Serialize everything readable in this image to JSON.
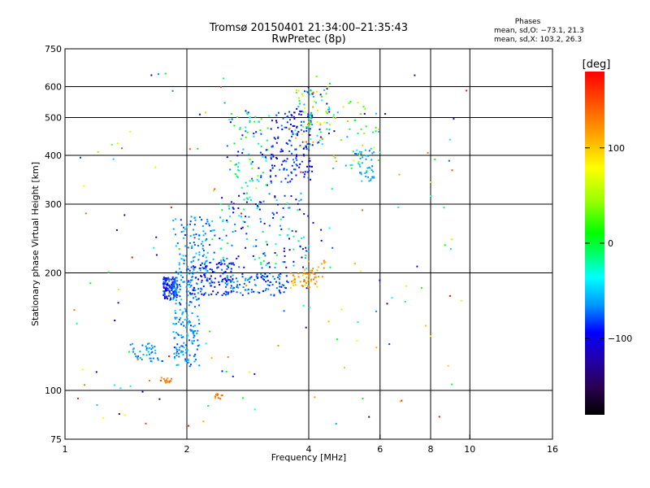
{
  "header": {
    "title_line1": "Tromsø 20150401 21:34:00–21:35:43",
    "title_line2": "RwPretec (8p)",
    "stats_heading": "Phases",
    "stats_o": "mean, sd,O: −73.1, 21.3",
    "stats_x": "mean, sd,X: 103.2, 26.3"
  },
  "colorbar": {
    "unit_label": "[deg]",
    "ticks": [
      {
        "value": 100,
        "label": "100"
      },
      {
        "value": 0,
        "label": "0"
      },
      {
        "value": -100,
        "label": "−100"
      }
    ],
    "range": [
      -180,
      180
    ],
    "colormap": [
      "#000000",
      "#2a0050",
      "#2000b4",
      "#0000ff",
      "#0096ff",
      "#00ffff",
      "#00ff66",
      "#00ff00",
      "#96ff00",
      "#ffff00",
      "#ffa000",
      "#ff5000",
      "#ff0000"
    ]
  },
  "chart_data": {
    "type": "scatter",
    "xlabel": "Frequency [MHz]",
    "ylabel": "Stationary phase Virtual Height [km]",
    "x_scale": "log",
    "y_scale": "log",
    "xlim": [
      1,
      16
    ],
    "ylim": [
      75,
      750
    ],
    "x_ticks": [
      {
        "v": 1,
        "l": "1"
      },
      {
        "v": 2,
        "l": "2"
      },
      {
        "v": 4,
        "l": "4"
      },
      {
        "v": 6,
        "l": "6"
      },
      {
        "v": 8,
        "l": "8"
      },
      {
        "v": 10,
        "l": "10"
      },
      {
        "v": 16,
        "l": "16"
      }
    ],
    "y_ticks": [
      {
        "v": 75,
        "l": "75"
      },
      {
        "v": 100,
        "l": "100"
      },
      {
        "v": 200,
        "l": "200"
      },
      {
        "v": 300,
        "l": "300"
      },
      {
        "v": 400,
        "l": "400"
      },
      {
        "v": 500,
        "l": "500"
      },
      {
        "v": 600,
        "l": "600"
      },
      {
        "v": 750,
        "l": "750"
      }
    ],
    "grid": true,
    "color_variable": "phase [deg]",
    "clusters": [
      {
        "f": [
          1.75,
          1.9
        ],
        "h": [
          170,
          195
        ],
        "phase": [
          -110,
          -60
        ],
        "n": 120
      },
      {
        "f": [
          1.85,
          2.15
        ],
        "h": [
          115,
          190
        ],
        "phase": [
          -80,
          -40
        ],
        "n": 180
      },
      {
        "f": [
          1.45,
          1.75
        ],
        "h": [
          118,
          132
        ],
        "phase": [
          -75,
          -45
        ],
        "n": 40
      },
      {
        "f": [
          1.85,
          2.35
        ],
        "h": [
          190,
          280
        ],
        "phase": [
          -80,
          -40
        ],
        "n": 120
      },
      {
        "f": [
          2.0,
          2.6
        ],
        "h": [
          175,
          215
        ],
        "phase": [
          -110,
          -60
        ],
        "n": 120
      },
      {
        "f": [
          2.5,
          3.6
        ],
        "h": [
          175,
          200
        ],
        "phase": [
          -90,
          -50
        ],
        "n": 110
      },
      {
        "f": [
          3.6,
          4.2
        ],
        "h": [
          182,
          200
        ],
        "phase": [
          100,
          140
        ],
        "n": 45
      },
      {
        "f": [
          3.9,
          4.4
        ],
        "h": [
          195,
          215
        ],
        "phase": [
          110,
          140
        ],
        "n": 20
      },
      {
        "f": [
          2.4,
          4.0
        ],
        "h": [
          205,
          320
        ],
        "phase": [
          -130,
          10
        ],
        "n": 160
      },
      {
        "f": [
          3.2,
          4.1
        ],
        "h": [
          340,
          520
        ],
        "phase": [
          -120,
          -60
        ],
        "n": 160
      },
      {
        "f": [
          2.5,
          3.2
        ],
        "h": [
          330,
          520
        ],
        "phase": [
          -100,
          60
        ],
        "n": 80
      },
      {
        "f": [
          3.7,
          4.5
        ],
        "h": [
          420,
          600
        ],
        "phase": [
          -120,
          140
        ],
        "n": 90
      },
      {
        "f": [
          4.5,
          6.0
        ],
        "h": [
          360,
          560
        ],
        "phase": [
          -60,
          120
        ],
        "n": 50
      },
      {
        "f": [
          5.2,
          5.8
        ],
        "h": [
          340,
          420
        ],
        "phase": [
          -70,
          -40
        ],
        "n": 40
      },
      {
        "f": [
          1.72,
          1.85
        ],
        "h": [
          104,
          108
        ],
        "phase": [
          120,
          150
        ],
        "n": 14
      },
      {
        "f": [
          2.35,
          2.45
        ],
        "h": [
          95,
          98
        ],
        "phase": [
          115,
          145
        ],
        "n": 10
      },
      {
        "f": [
          1.05,
          10.0
        ],
        "h": [
          80,
          650
        ],
        "phase": [
          -150,
          180
        ],
        "n": 160
      }
    ]
  }
}
